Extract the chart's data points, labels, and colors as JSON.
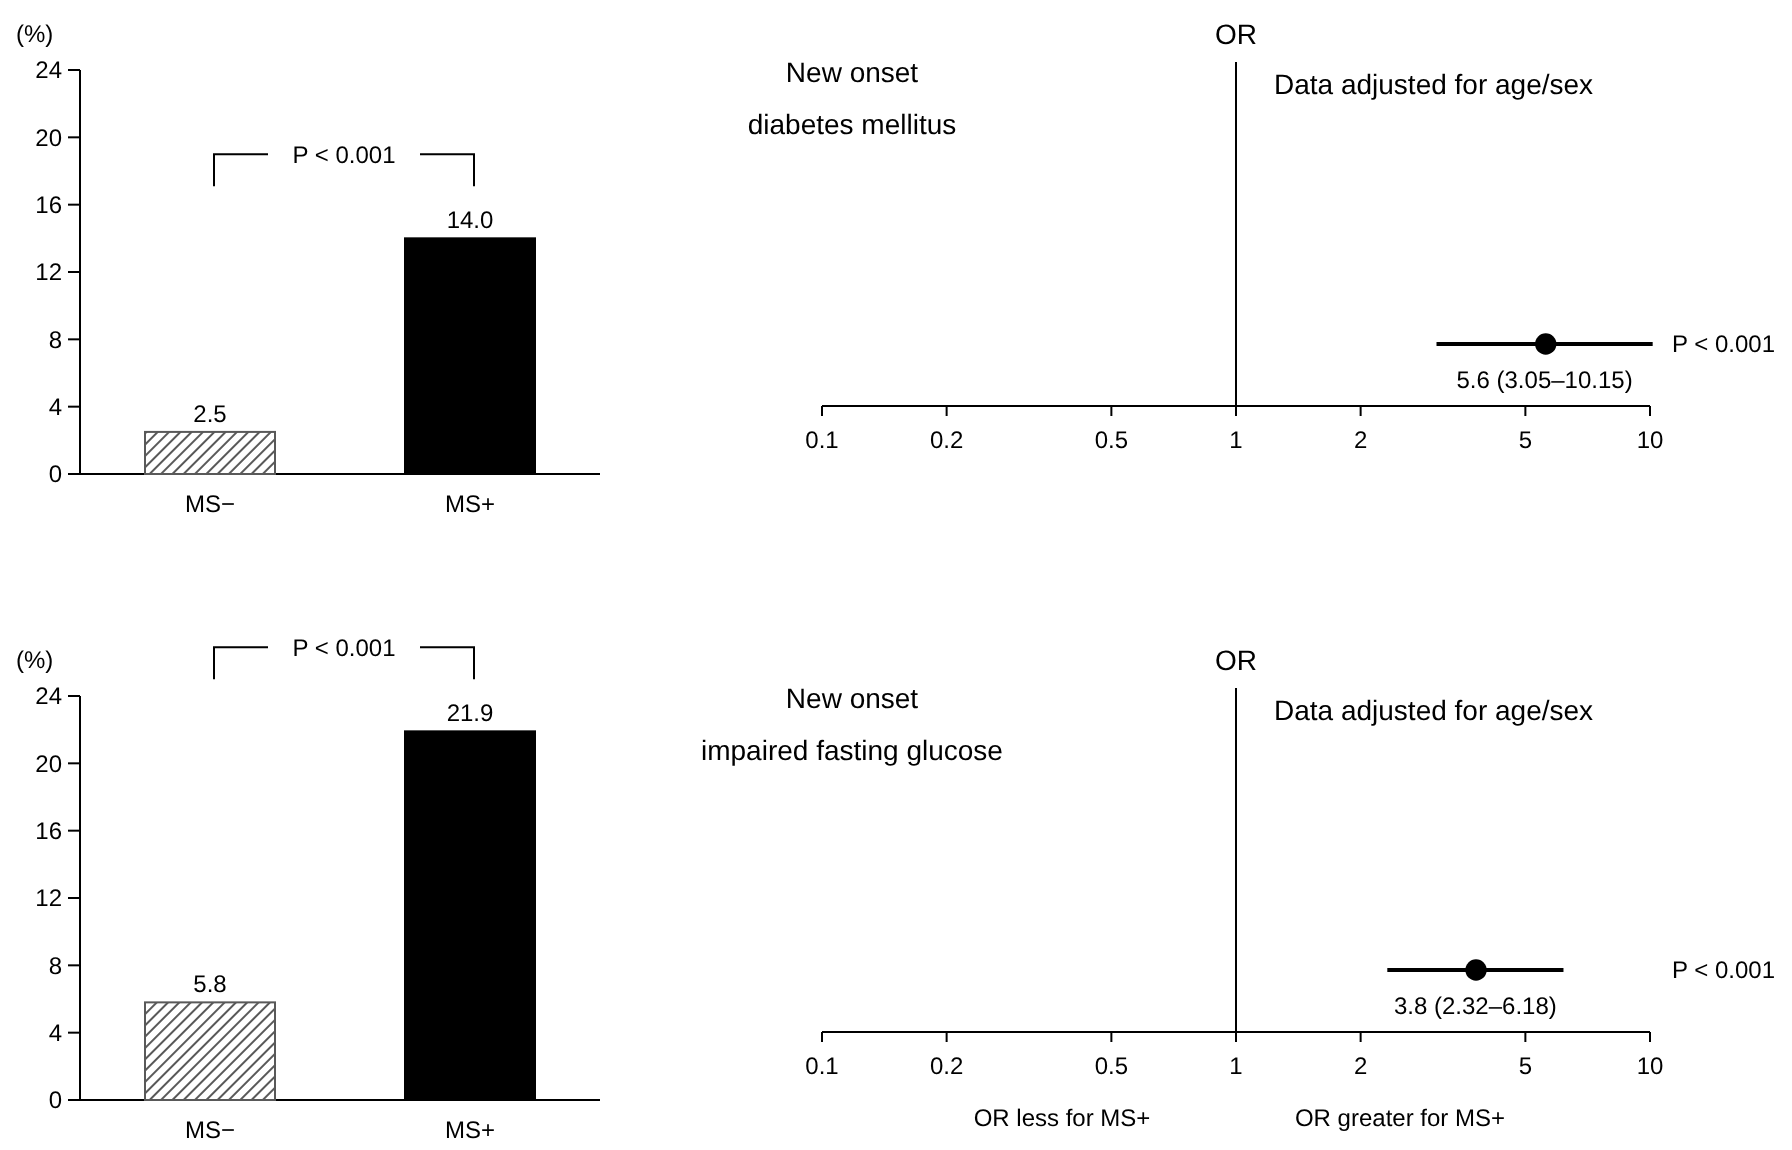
{
  "chart_data": [
    {
      "type": "bar",
      "ylabel": "(%)",
      "categories": [
        "MS−",
        "MS+"
      ],
      "values": [
        2.5,
        14.0
      ],
      "value_labels": [
        "2.5",
        "14.0"
      ],
      "colors": [
        "#595959",
        "#000000"
      ],
      "ylim": [
        0,
        24
      ],
      "yticks": [
        0,
        4,
        8,
        12,
        16,
        20,
        24
      ],
      "annotations": [
        "P < 0.001"
      ]
    },
    {
      "type": "scatter",
      "orientation": "horizontal",
      "title": "New onset\ndiabetes mellitus",
      "categories": [
        null
      ],
      "values": [
        5.6
      ],
      "errors": [
        [
          3.05,
          10.15
        ]
      ],
      "value_labels": [
        "5.6 (3.05–10.15)"
      ],
      "color": "#000000",
      "marker": "circle",
      "log": "x",
      "xlim": [
        0.1,
        10
      ],
      "xticks": [
        0.1,
        0.2,
        0.5,
        1,
        2,
        5,
        10
      ],
      "tick_labels": "x",
      "ref_lines": [
        {
          "axis": "x",
          "value": 1,
          "label": "OR"
        }
      ],
      "annotations": [
        "Data adjusted for age/sex",
        "P < 0.001"
      ]
    },
    {
      "type": "bar",
      "ylabel": "(%)",
      "categories": [
        "MS−",
        "MS+"
      ],
      "values": [
        5.8,
        21.9
      ],
      "value_labels": [
        "5.8",
        "21.9"
      ],
      "colors": [
        "#595959",
        "#000000"
      ],
      "ylim": [
        0,
        24
      ],
      "yticks": [
        0,
        4,
        8,
        12,
        16,
        20,
        24
      ],
      "annotations": [
        "P < 0.001"
      ]
    },
    {
      "type": "scatter",
      "orientation": "horizontal",
      "title": "New onset\nimpaired fasting glucose",
      "categories": [
        null
      ],
      "values": [
        3.8
      ],
      "errors": [
        [
          2.32,
          6.18
        ]
      ],
      "value_labels": [
        "3.8 (2.32–6.18)"
      ],
      "color": "#000000",
      "marker": "circle",
      "log": "x",
      "xlim": [
        0.1,
        10
      ],
      "xticks": [
        0.1,
        0.2,
        0.5,
        1,
        2,
        5,
        10
      ],
      "tick_labels": "x",
      "ref_lines": [
        {
          "axis": "x",
          "value": 1,
          "label": "OR"
        }
      ],
      "annotations": [
        "Data adjusted for age/sex",
        "P < 0.001",
        "OR less for MS+",
        "OR greater for MS+"
      ]
    }
  ]
}
